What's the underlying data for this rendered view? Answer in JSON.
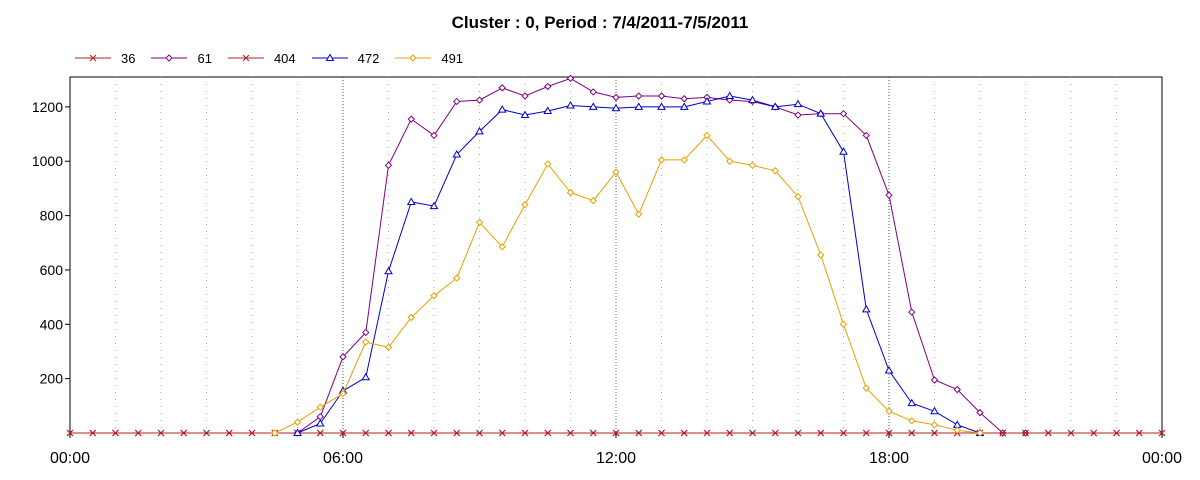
{
  "chart_data": {
    "type": "line",
    "title": "Cluster : 0, Period : 7/4/2011-7/5/2011",
    "xlabel": "",
    "ylabel": "",
    "x_ticks": [
      "00:00",
      "06:00",
      "12:00",
      "18:00",
      "00:00"
    ],
    "x_range_hours": [
      0,
      24
    ],
    "y_ticks": [
      200,
      400,
      600,
      800,
      1000,
      1200
    ],
    "ylim": [
      0,
      1310
    ],
    "grid": "dotted vertical",
    "legend_position": "top-left",
    "x_hours": [
      0.0,
      0.5,
      1.0,
      1.5,
      2.0,
      2.5,
      3.0,
      3.5,
      4.0,
      4.5,
      5.0,
      5.5,
      6.0,
      6.5,
      7.0,
      7.5,
      8.0,
      8.5,
      9.0,
      9.5,
      10.0,
      10.5,
      11.0,
      11.5,
      12.0,
      12.5,
      13.0,
      13.5,
      14.0,
      14.5,
      15.0,
      15.5,
      16.0,
      16.5,
      17.0,
      17.5,
      18.0,
      18.5,
      19.0,
      19.5,
      20.0,
      20.5,
      21.0,
      21.5,
      22.0,
      22.5,
      23.0,
      23.5,
      24.0
    ],
    "series": [
      {
        "name": "36",
        "color": "#b22222",
        "marker": "x",
        "values": [
          0,
          0,
          0,
          0,
          0,
          0,
          0,
          0,
          0,
          0,
          0,
          0,
          0,
          0,
          0,
          0,
          0,
          0,
          0,
          0,
          0,
          0,
          0,
          0,
          0,
          0,
          0,
          0,
          0,
          0,
          0,
          0,
          0,
          0,
          0,
          0,
          0,
          0,
          0,
          0,
          0,
          0,
          0,
          0,
          0,
          0,
          0,
          0,
          0
        ]
      },
      {
        "name": "61",
        "color": "#800080",
        "marker": "diamond",
        "values": [
          null,
          null,
          null,
          null,
          null,
          null,
          null,
          null,
          null,
          null,
          0,
          60,
          280,
          370,
          985,
          1155,
          1095,
          1220,
          1225,
          1270,
          1240,
          1275,
          1305,
          1255,
          1235,
          1240,
          1240,
          1230,
          1235,
          1225,
          1220,
          1200,
          1170,
          1175,
          1175,
          1095,
          875,
          445,
          195,
          160,
          75,
          0,
          0,
          null,
          null,
          null,
          null,
          null,
          null
        ]
      },
      {
        "name": "404",
        "color": "#b22222",
        "marker": "x",
        "values": [
          0,
          0,
          0,
          0,
          0,
          0,
          0,
          0,
          0,
          0,
          0,
          0,
          0,
          0,
          0,
          0,
          0,
          0,
          0,
          0,
          0,
          0,
          0,
          0,
          0,
          0,
          0,
          0,
          0,
          0,
          0,
          0,
          0,
          0,
          0,
          0,
          0,
          0,
          0,
          0,
          0,
          0,
          0,
          0,
          0,
          0,
          0,
          0,
          0
        ]
      },
      {
        "name": "472",
        "color": "#0000cc",
        "marker": "triangle",
        "values": [
          null,
          null,
          null,
          null,
          null,
          null,
          null,
          null,
          null,
          null,
          0,
          35,
          155,
          205,
          595,
          850,
          835,
          1025,
          1110,
          1190,
          1170,
          1185,
          1205,
          1200,
          1195,
          1200,
          1200,
          1200,
          1220,
          1240,
          1225,
          1200,
          1210,
          1175,
          1035,
          455,
          230,
          110,
          80,
          30,
          0,
          null,
          null,
          null,
          null,
          null,
          null,
          null,
          null
        ]
      },
      {
        "name": "491",
        "color": "#e8a000",
        "marker": "diamond",
        "values": [
          null,
          null,
          null,
          null,
          null,
          null,
          null,
          null,
          null,
          0,
          40,
          95,
          145,
          335,
          315,
          425,
          505,
          570,
          775,
          685,
          840,
          990,
          885,
          855,
          960,
          805,
          1005,
          1005,
          1095,
          1000,
          985,
          965,
          870,
          655,
          400,
          165,
          80,
          45,
          30,
          10,
          0,
          null,
          null,
          null,
          null,
          null,
          null,
          null,
          null
        ]
      }
    ]
  }
}
